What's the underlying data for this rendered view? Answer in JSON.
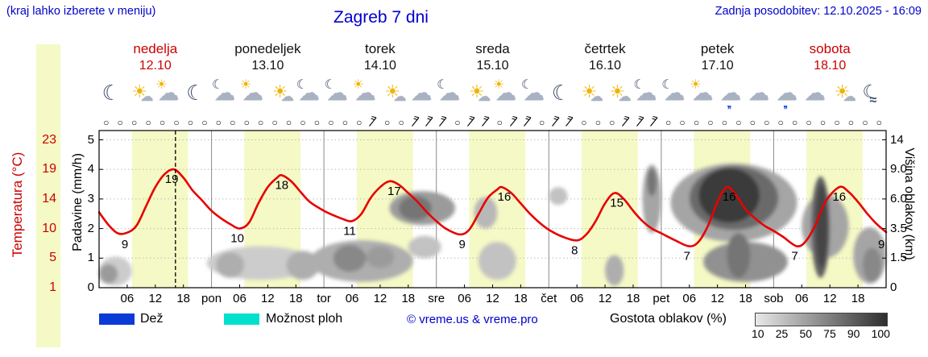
{
  "header": {
    "location_hint": "(kraj lahko izberete v meniju)",
    "title": "Zagreb 7 dni",
    "last_update": "Zadnja posodobitev: 12.10.2025 - 16:09"
  },
  "days": [
    {
      "name": "nedelja",
      "date": "12.10",
      "highlight": true,
      "icons": [
        "moon",
        "sun-cloud",
        "cloud-sun",
        "moon"
      ]
    },
    {
      "name": "ponedeljek",
      "date": "13.10",
      "highlight": false,
      "icons": [
        "moon-cloud",
        "cloud-sun",
        "sun-cloud",
        "moon-cloud"
      ]
    },
    {
      "name": "torek",
      "date": "14.10",
      "highlight": false,
      "icons": [
        "moon-cloud",
        "cloud-sun",
        "sun-cloud",
        "cloud"
      ]
    },
    {
      "name": "sreda",
      "date": "15.10",
      "highlight": false,
      "icons": [
        "moon-cloud",
        "sun-cloud",
        "cloud-sun",
        "moon-cloud"
      ]
    },
    {
      "name": "četrtek",
      "date": "16.10",
      "highlight": false,
      "icons": [
        "moon",
        "sun-cloud",
        "sun-cloud",
        "moon-cloud"
      ]
    },
    {
      "name": "petek",
      "date": "17.10",
      "highlight": false,
      "icons": [
        "moon-cloud",
        "cloud-sun",
        "cloud-rain",
        "cloud"
      ]
    },
    {
      "name": "sobota",
      "date": "18.10",
      "highlight": true,
      "icons": [
        "cloud-rain",
        "cloud",
        "sun-cloud",
        "moon-fog"
      ]
    }
  ],
  "axes": {
    "temperature": {
      "label": "Temperatura (°C)",
      "ticks": [
        "23",
        "19",
        "14",
        "10",
        "5",
        "1"
      ],
      "color": "#cc0000"
    },
    "precipitation": {
      "label": "Padavine (mm/h)",
      "ticks": [
        "5",
        "4",
        "3",
        "2",
        "1",
        "0"
      ]
    },
    "cloud_height": {
      "label": "Višina oblakov (km)",
      "ticks": [
        "14",
        "9.0",
        "6.0",
        "3.5",
        "1.5",
        "0"
      ]
    },
    "time": {
      "hour_labels": [
        "06",
        "12",
        "18"
      ],
      "day_abbrevs": [
        "pon",
        "tor",
        "sre",
        "čet",
        "pet",
        "sob"
      ]
    }
  },
  "legend": {
    "rain_label": "Dež",
    "rain_color": "#0b3bd6",
    "showers_label": "Možnost ploh",
    "showers_color": "#00e0cc",
    "copyright": "© vreme.us & vreme.pro",
    "cloud_density_label": "Gostota oblakov (%)",
    "density_ticks": [
      "10",
      "25",
      "50",
      "75",
      "90",
      "100"
    ]
  },
  "chart_data": {
    "type": "line",
    "title": "Zagreb 7 dni",
    "x_unit": "hours from 12.10. 00:00",
    "x_range": [
      0,
      168
    ],
    "now_hour": 16.3,
    "daylight_hours": [
      7,
      19
    ],
    "band_color": "#f5f9c5",
    "temperature": {
      "name": "Temperatura",
      "color": "#e80000",
      "points": [
        [
          0,
          12.2
        ],
        [
          2,
          10.5
        ],
        [
          4,
          9.2
        ],
        [
          6,
          9.3
        ],
        [
          8,
          10.4
        ],
        [
          10,
          13
        ],
        [
          12,
          16
        ],
        [
          14,
          18.2
        ],
        [
          16,
          19
        ],
        [
          18,
          17.6
        ],
        [
          20,
          15.4
        ],
        [
          22,
          13.8
        ],
        [
          24,
          12.4
        ],
        [
          26,
          11.4
        ],
        [
          28,
          10.6
        ],
        [
          30,
          10
        ],
        [
          32,
          10.8
        ],
        [
          34,
          13.4
        ],
        [
          36,
          16
        ],
        [
          38,
          17.6
        ],
        [
          39,
          18
        ],
        [
          41,
          17
        ],
        [
          43,
          15.2
        ],
        [
          45,
          13.6
        ],
        [
          48,
          12.4
        ],
        [
          50,
          11.8
        ],
        [
          52,
          11.3
        ],
        [
          54,
          11
        ],
        [
          56,
          12
        ],
        [
          58,
          14.2
        ],
        [
          60,
          16
        ],
        [
          62,
          17
        ],
        [
          64,
          16.4
        ],
        [
          66,
          15
        ],
        [
          68,
          13.6
        ],
        [
          70,
          12.2
        ],
        [
          72,
          11
        ],
        [
          74,
          10
        ],
        [
          77,
          9
        ],
        [
          79,
          9.8
        ],
        [
          81,
          12
        ],
        [
          83,
          14.2
        ],
        [
          85,
          15.6
        ],
        [
          86,
          16
        ],
        [
          88,
          15
        ],
        [
          90,
          13.4
        ],
        [
          92,
          12
        ],
        [
          94,
          10.8
        ],
        [
          96,
          9.8
        ],
        [
          99,
          8.6
        ],
        [
          102,
          8
        ],
        [
          104,
          9
        ],
        [
          106,
          11
        ],
        [
          108,
          13.4
        ],
        [
          110,
          15
        ],
        [
          112,
          14
        ],
        [
          114,
          12.4
        ],
        [
          116,
          11
        ],
        [
          118,
          10
        ],
        [
          120,
          9.2
        ],
        [
          123,
          8
        ],
        [
          126,
          7
        ],
        [
          128,
          7.8
        ],
        [
          130,
          10.4
        ],
        [
          132,
          13.6
        ],
        [
          134,
          16
        ],
        [
          136,
          14.6
        ],
        [
          138,
          12.6
        ],
        [
          140,
          11.4
        ],
        [
          142,
          10.4
        ],
        [
          144,
          9.6
        ],
        [
          146,
          8.6
        ],
        [
          149,
          7
        ],
        [
          151,
          8
        ],
        [
          153,
          10.6
        ],
        [
          155,
          13.6
        ],
        [
          158,
          16
        ],
        [
          160,
          15.2
        ],
        [
          162,
          13.6
        ],
        [
          164,
          12
        ],
        [
          166,
          10.6
        ],
        [
          168,
          9.4
        ]
      ],
      "labels": [
        [
          5.5,
          "9"
        ],
        [
          15.5,
          "19"
        ],
        [
          29.5,
          "10"
        ],
        [
          39,
          "18"
        ],
        [
          53.5,
          "11"
        ],
        [
          63,
          "17"
        ],
        [
          77.5,
          "9"
        ],
        [
          86.5,
          "16"
        ],
        [
          101.5,
          "8"
        ],
        [
          110.5,
          "15"
        ],
        [
          125.5,
          "7"
        ],
        [
          134.5,
          "16"
        ],
        [
          148.5,
          "7"
        ],
        [
          158,
          "16"
        ],
        [
          167,
          "9"
        ]
      ]
    },
    "temp_scale_ticks": [
      [
        1,
        0
      ],
      [
        5,
        1
      ],
      [
        10,
        2
      ],
      [
        14,
        3
      ],
      [
        19,
        4
      ],
      [
        23,
        5
      ]
    ],
    "cloud_scale_ticks": [
      [
        0,
        0
      ],
      [
        1.5,
        1
      ],
      [
        3.5,
        2
      ],
      [
        6,
        3
      ],
      [
        9,
        4
      ],
      [
        14,
        5
      ]
    ],
    "precip_scale_ticks": [
      [
        0,
        0
      ],
      [
        1,
        1
      ],
      [
        2,
        2
      ],
      [
        3,
        3
      ],
      [
        4,
        4
      ],
      [
        5,
        5
      ]
    ],
    "clouds": [
      {
        "t0": 0,
        "t1": 7,
        "km0": 0.1,
        "km1": 1.6,
        "density": 25
      },
      {
        "t0": 0,
        "t1": 4,
        "km0": 0.2,
        "km1": 1.2,
        "density": 50
      },
      {
        "t0": 23,
        "t1": 46,
        "km0": 0.4,
        "km1": 2.3,
        "density": 25
      },
      {
        "t0": 25,
        "t1": 31,
        "km0": 0.5,
        "km1": 1.9,
        "density": 40
      },
      {
        "t0": 40,
        "t1": 47,
        "km0": 0.4,
        "km1": 2.0,
        "density": 40
      },
      {
        "t0": 45,
        "t1": 67,
        "km0": 0.3,
        "km1": 2.7,
        "density": 40
      },
      {
        "t0": 50,
        "t1": 57,
        "km0": 0.8,
        "km1": 2.4,
        "density": 60
      },
      {
        "t0": 57,
        "t1": 63,
        "km0": 1.0,
        "km1": 2.3,
        "density": 50
      },
      {
        "t0": 62,
        "t1": 76,
        "km0": 3.8,
        "km1": 6.8,
        "density": 50
      },
      {
        "t0": 64,
        "t1": 71,
        "km0": 4.2,
        "km1": 6.3,
        "density": 70
      },
      {
        "t0": 66,
        "t1": 73,
        "km0": 1.5,
        "km1": 3.0,
        "density": 30
      },
      {
        "t0": 80,
        "t1": 85,
        "km0": 3.5,
        "km1": 6.2,
        "density": 35
      },
      {
        "t0": 81,
        "t1": 89,
        "km0": 0.4,
        "km1": 2.6,
        "density": 30
      },
      {
        "t0": 96,
        "t1": 100,
        "km0": 5.5,
        "km1": 7.2,
        "density": 30
      },
      {
        "t0": 108,
        "t1": 112,
        "km0": 0.1,
        "km1": 1.7,
        "density": 40
      },
      {
        "t0": 116,
        "t1": 120,
        "km0": 3.2,
        "km1": 9.8,
        "density": 45
      },
      {
        "t0": 117,
        "t1": 119,
        "km0": 6.3,
        "km1": 9.2,
        "density": 70
      },
      {
        "t0": 122,
        "t1": 149,
        "km0": 2.6,
        "km1": 10.0,
        "density": 45
      },
      {
        "t0": 126,
        "t1": 145,
        "km0": 3.4,
        "km1": 9.6,
        "density": 75
      },
      {
        "t0": 128,
        "t1": 141,
        "km0": 4.0,
        "km1": 9.2,
        "density": 100
      },
      {
        "t0": 129,
        "t1": 147,
        "km0": 0.3,
        "km1": 2.6,
        "density": 55
      },
      {
        "t0": 134,
        "t1": 139,
        "km0": 0.5,
        "km1": 3.2,
        "density": 70
      },
      {
        "t0": 150,
        "t1": 160,
        "km0": 1.5,
        "km1": 6.5,
        "density": 45
      },
      {
        "t0": 152,
        "t1": 156,
        "km0": 0.5,
        "km1": 8.3,
        "density": 80
      },
      {
        "t0": 153,
        "t1": 155.5,
        "km0": 1.0,
        "km1": 7.5,
        "density": 95
      },
      {
        "t0": 161,
        "t1": 168,
        "km0": 0.2,
        "km1": 3.6,
        "density": 45
      },
      {
        "t0": 163,
        "t1": 167,
        "km0": 0.3,
        "km1": 2.2,
        "density": 60
      }
    ],
    "wind": {
      "count": 56,
      "step_hours": 3,
      "barb_indices": [
        19,
        22,
        23,
        24,
        26,
        27,
        29,
        30,
        32,
        33,
        37,
        38,
        39
      ]
    }
  }
}
